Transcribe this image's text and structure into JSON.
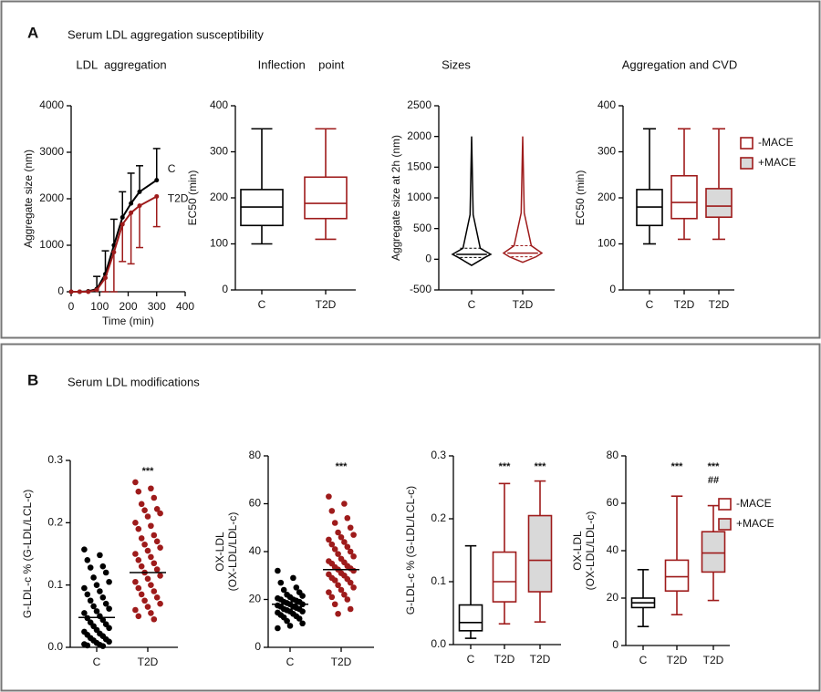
{
  "panels": [
    {
      "letter": "A",
      "title": "Serum LDL aggregation susceptibility"
    },
    {
      "letter": "B",
      "title": "Serum LDL modifications"
    }
  ],
  "chart_data": [
    {
      "type": "line",
      "title": "LDL  aggregation",
      "xlabel": "Time (min)",
      "ylabel": "Aggregate size (nm)",
      "xlim": [
        0,
        400
      ],
      "xticks": [
        0,
        100,
        200,
        300,
        400
      ],
      "ylim": [
        0,
        4000
      ],
      "yticks": [
        0,
        1000,
        2000,
        3000,
        4000
      ],
      "x": [
        0,
        30,
        60,
        90,
        120,
        150,
        180,
        210,
        240,
        300
      ],
      "series": [
        {
          "name": "C",
          "color": "#000000",
          "error_direction": "up",
          "values": [
            0,
            0,
            10,
            60,
            380,
            1000,
            1600,
            1900,
            2150,
            2400
          ],
          "errors": [
            0,
            0,
            0,
            270,
            500,
            560,
            550,
            650,
            560,
            680
          ]
        },
        {
          "name": "T2D",
          "color": "#9e1b1b",
          "error_direction": "down",
          "values": [
            0,
            0,
            0,
            40,
            300,
            850,
            1450,
            1700,
            1850,
            2050
          ],
          "errors": [
            0,
            0,
            0,
            0,
            300,
            850,
            800,
            1100,
            900,
            650
          ]
        }
      ]
    },
    {
      "type": "box",
      "title": "Inflection    point",
      "ylabel": "EC50 (min)",
      "ylim": [
        0,
        400
      ],
      "yticks": [
        0,
        100,
        200,
        300,
        400
      ],
      "categories": [
        "C",
        "T2D"
      ],
      "boxes": [
        {
          "color": "#000000",
          "fill": "#ffffff",
          "values": [
            100,
            140,
            180,
            218,
            350
          ]
        },
        {
          "color": "#9e1b1b",
          "fill": "#ffffff",
          "values": [
            110,
            155,
            188,
            245,
            350
          ]
        }
      ]
    },
    {
      "type": "violin",
      "title": "Sizes",
      "ylabel": "Aggregate size at 2h (nm)",
      "ylim": [
        -500,
        2500
      ],
      "yticks": [
        -500,
        0,
        500,
        1000,
        1500,
        2000,
        2500
      ],
      "categories": [
        "C",
        "T2D"
      ],
      "groups": [
        {
          "color": "#000000",
          "values": [
            -100,
            30,
            80,
            180,
            2000
          ]
        },
        {
          "color": "#9e1b1b",
          "values": [
            -50,
            40,
            100,
            220,
            2000
          ]
        }
      ]
    },
    {
      "type": "box",
      "title": "Aggregation and CVD",
      "ylabel": "EC50 (min)",
      "ylim": [
        0,
        400
      ],
      "yticks": [
        0,
        100,
        200,
        300,
        400
      ],
      "categories": [
        "C",
        "T2D",
        "T2D"
      ],
      "legend": [
        {
          "name": "-MACE",
          "color": "#9e1b1b",
          "fill": "#ffffff"
        },
        {
          "name": "+MACE",
          "color": "#9e1b1b",
          "fill": "#d9d9d9"
        }
      ],
      "boxes": [
        {
          "color": "#000000",
          "fill": "#ffffff",
          "values": [
            100,
            140,
            180,
            218,
            350
          ]
        },
        {
          "color": "#9e1b1b",
          "fill": "#ffffff",
          "values": [
            110,
            155,
            190,
            248,
            350
          ]
        },
        {
          "color": "#9e1b1b",
          "fill": "#d9d9d9",
          "values": [
            110,
            158,
            182,
            220,
            350
          ]
        }
      ]
    },
    {
      "type": "strip",
      "ylabel": "G-LDL-c % (G-LDL/LCL-c)",
      "ylim": [
        0,
        0.3
      ],
      "yticks": [
        {
          "value": 0,
          "label": "0.0"
        },
        0.1,
        0.2,
        0.3
      ],
      "categories": [
        "C",
        "T2D"
      ],
      "groups": [
        {
          "color": "#000000",
          "mean": 0.048,
          "values": [
            0.157,
            0.148,
            0.14,
            0.13,
            0.128,
            0.12,
            0.112,
            0.105,
            0.1,
            0.095,
            0.09,
            0.085,
            0.08,
            0.075,
            0.07,
            0.066,
            0.062,
            0.058,
            0.055,
            0.05,
            0.047,
            0.044,
            0.04,
            0.037,
            0.034,
            0.031,
            0.028,
            0.025,
            0.022,
            0.02,
            0.018,
            0.015,
            0.013,
            0.011,
            0.009,
            0.007,
            0.005,
            0.004,
            0.003,
            0.002
          ]
        },
        {
          "color": "#9e1b1b",
          "mean": 0.12,
          "annotation": [
            "***"
          ],
          "values": [
            0.265,
            0.255,
            0.25,
            0.24,
            0.23,
            0.222,
            0.22,
            0.215,
            0.21,
            0.2,
            0.195,
            0.19,
            0.18,
            0.175,
            0.17,
            0.165,
            0.16,
            0.155,
            0.15,
            0.145,
            0.14,
            0.135,
            0.13,
            0.125,
            0.12,
            0.115,
            0.11,
            0.105,
            0.1,
            0.095,
            0.09,
            0.085,
            0.08,
            0.075,
            0.07,
            0.065,
            0.06,
            0.055,
            0.05,
            0.045
          ]
        }
      ]
    },
    {
      "type": "strip",
      "ylabel": [
        "OX-LDL",
        "(OX-LDL/LDL-c)"
      ],
      "ylim": [
        0,
        80
      ],
      "yticks": [
        0,
        20,
        40,
        60,
        80
      ],
      "categories": [
        "C",
        "T2D"
      ],
      "groups": [
        {
          "color": "#000000",
          "mean": 18,
          "values": [
            32,
            29,
            27,
            25,
            24,
            23,
            22,
            21.5,
            21,
            20.5,
            20,
            20,
            19.5,
            19,
            19,
            18.5,
            18,
            18,
            17.5,
            17,
            17,
            16.5,
            16,
            16,
            15.5,
            15,
            15,
            14.5,
            14,
            13.5,
            13,
            12.5,
            12,
            11,
            10,
            9,
            8
          ]
        },
        {
          "color": "#9e1b1b",
          "mean": 32.5,
          "annotation": [
            "***"
          ],
          "values": [
            63,
            60,
            57,
            54,
            52,
            50,
            48,
            47,
            46,
            45,
            44,
            43,
            42,
            41,
            40,
            39,
            38,
            37,
            36,
            35.5,
            35,
            34,
            33.5,
            33,
            32.5,
            32,
            31,
            30.5,
            30,
            29,
            28.5,
            28,
            27,
            26,
            25,
            24,
            23,
            22,
            21,
            20,
            18,
            16,
            14
          ]
        }
      ]
    },
    {
      "type": "box",
      "ylabel": "G-LDL-c % (G-LDL/LCL-c)",
      "ylim": [
        0,
        0.3
      ],
      "yticks": [
        {
          "value": 0,
          "label": "0.0"
        },
        0.1,
        0.2,
        0.3
      ],
      "categories": [
        "C",
        "T2D",
        "T2D"
      ],
      "boxes": [
        {
          "color": "#000000",
          "fill": "#ffffff",
          "values": [
            0.01,
            0.022,
            0.035,
            0.063,
            0.157
          ]
        },
        {
          "color": "#9e1b1b",
          "fill": "#ffffff",
          "annotation": [
            "***"
          ],
          "values": [
            0.033,
            0.068,
            0.1,
            0.147,
            0.256
          ]
        },
        {
          "color": "#9e1b1b",
          "fill": "#d9d9d9",
          "annotation": [
            "***"
          ],
          "values": [
            0.036,
            0.084,
            0.134,
            0.205,
            0.26
          ]
        }
      ]
    },
    {
      "type": "box",
      "ylabel": [
        "OX-LDL",
        "(OX-LDL/LDL-c)"
      ],
      "ylim": [
        0,
        80
      ],
      "yticks": [
        0,
        20,
        40,
        60,
        80
      ],
      "categories": [
        "C",
        "T2D",
        "T2D"
      ],
      "legend": [
        {
          "name": "-MACE",
          "color": "#9e1b1b",
          "fill": "#ffffff"
        },
        {
          "name": "+MACE",
          "color": "#9e1b1b",
          "fill": "#d9d9d9"
        }
      ],
      "boxes": [
        {
          "color": "#000000",
          "fill": "#ffffff",
          "values": [
            8,
            16,
            18,
            20,
            32
          ]
        },
        {
          "color": "#9e1b1b",
          "fill": "#ffffff",
          "annotation": [
            "***"
          ],
          "values": [
            13,
            23,
            29,
            36,
            63
          ]
        },
        {
          "color": "#9e1b1b",
          "fill": "#d9d9d9",
          "annotation": [
            "***",
            "##"
          ],
          "values": [
            19,
            31,
            39,
            48,
            59
          ]
        }
      ]
    }
  ]
}
